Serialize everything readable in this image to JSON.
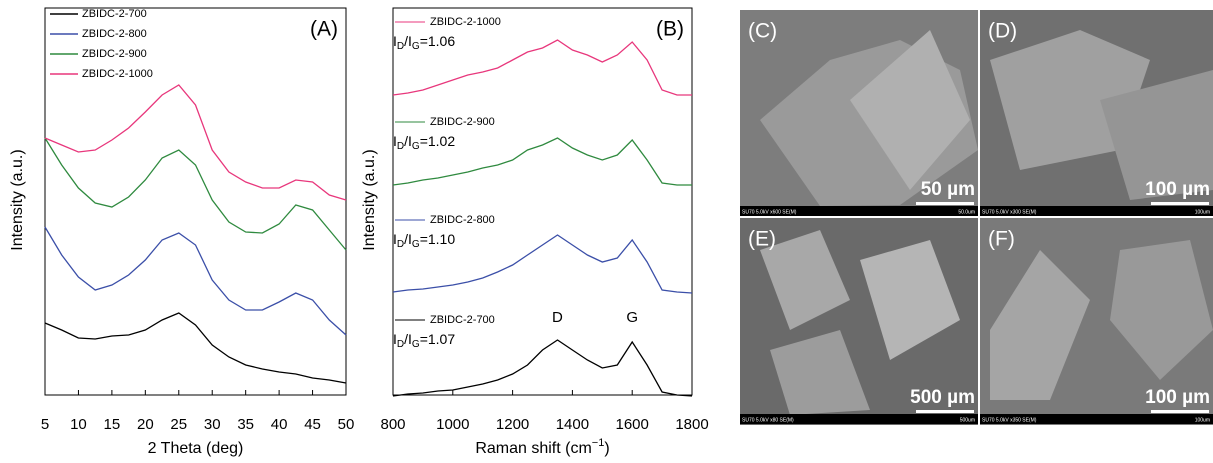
{
  "chart_data": [
    {
      "type": "line",
      "panel_label": "(A)",
      "x_label": "2 Theta (deg)",
      "y_label": "Intensity (a.u.)",
      "x": [
        5,
        7.5,
        10,
        12.5,
        15,
        17.5,
        20,
        22.5,
        25,
        27.5,
        30,
        32.5,
        35,
        37.5,
        40,
        42.5,
        45,
        47.5,
        50
      ],
      "xlim": [
        5,
        50
      ],
      "xticks": [
        5,
        10,
        15,
        20,
        25,
        30,
        35,
        40,
        45,
        50
      ],
      "ylim": [
        0,
        390
      ],
      "legend": "top-left",
      "series": [
        {
          "name": "ZBIDC-2-700",
          "color": "#000000",
          "values": [
            72,
            65,
            57,
            56,
            59,
            60,
            65,
            75,
            82,
            70,
            50,
            38,
            30,
            26,
            23,
            21,
            17,
            15,
            12
          ]
        },
        {
          "name": "ZBIDC-2-800",
          "color": "#3b4fa8",
          "values": [
            168,
            140,
            118,
            105,
            110,
            120,
            135,
            155,
            162,
            150,
            115,
            95,
            85,
            85,
            93,
            102,
            95,
            75,
            60
          ]
        },
        {
          "name": "ZBIDC-2-900",
          "color": "#2f8a3f",
          "values": [
            257,
            230,
            207,
            192,
            188,
            198,
            215,
            237,
            245,
            230,
            195,
            173,
            163,
            162,
            171,
            190,
            185,
            165,
            145
          ]
        },
        {
          "name": "ZBIDC-2-1000",
          "color": "#e8377c",
          "values": [
            257,
            250,
            243,
            245,
            255,
            267,
            283,
            300,
            310,
            290,
            245,
            223,
            213,
            207,
            207,
            215,
            213,
            200,
            195
          ]
        }
      ]
    },
    {
      "type": "line",
      "panel_label": "(B)",
      "x_label": [
        "Raman shift (cm",
        "−1",
        ")"
      ],
      "y_label": "Intensity (a.u.)",
      "ratio_label": [
        "I",
        "D",
        "/I",
        "G",
        "="
      ],
      "peak_labels": [
        "D",
        "G"
      ],
      "x": [
        800,
        850,
        900,
        950,
        1000,
        1050,
        1100,
        1150,
        1200,
        1250,
        1300,
        1350,
        1400,
        1450,
        1500,
        1550,
        1600,
        1650,
        1700,
        1750,
        1800
      ],
      "xlim": [
        800,
        1800
      ],
      "xticks": [
        800,
        1000,
        1200,
        1400,
        1600,
        1800
      ],
      "ylim": [
        0,
        395
      ],
      "series": [
        {
          "name": "ZBIDC-2-700",
          "color": "#000000",
          "ratio": "1.07",
          "values": [
            4,
            6,
            7,
            9,
            10,
            13,
            16,
            20,
            26,
            35,
            50,
            60,
            50,
            40,
            32,
            35,
            58,
            35,
            8,
            5,
            4
          ]
        },
        {
          "name": "ZBIDC-2-800",
          "color": "#3b4fa8",
          "ratio": "1.10",
          "values": [
            108,
            110,
            111,
            113,
            115,
            118,
            122,
            128,
            135,
            145,
            155,
            165,
            155,
            145,
            138,
            142,
            160,
            138,
            110,
            108,
            107
          ]
        },
        {
          "name": "ZBIDC-2-900",
          "color": "#2f8a3f",
          "ratio": "1.02",
          "values": [
            215,
            217,
            220,
            222,
            225,
            228,
            232,
            235,
            240,
            250,
            255,
            262,
            252,
            245,
            240,
            245,
            260,
            240,
            217,
            215,
            215
          ]
        },
        {
          "name": "ZBIDC-2-1000",
          "color": "#e8377c",
          "ratio": "1.06",
          "values": [
            305,
            307,
            310,
            315,
            320,
            325,
            328,
            332,
            340,
            348,
            352,
            360,
            350,
            345,
            338,
            345,
            358,
            340,
            310,
            305,
            305
          ]
        }
      ]
    }
  ],
  "micrographs": [
    {
      "label": "(C)",
      "scale": "50 µm",
      "info": "SU70 5.0kV x600 SE(M)",
      "bar": "50.0um"
    },
    {
      "label": "(D)",
      "scale": "100 µm",
      "info": "SU70 5.0kV x300 SE(M)",
      "bar": "100um"
    },
    {
      "label": "(E)",
      "scale": "500 µm",
      "info": "SU70 5.0kV x80 SE(M)",
      "bar": "500um"
    },
    {
      "label": "(F)",
      "scale": "100 µm",
      "info": "SU70 5.0kV x350 SE(M)",
      "bar": "100um"
    }
  ]
}
